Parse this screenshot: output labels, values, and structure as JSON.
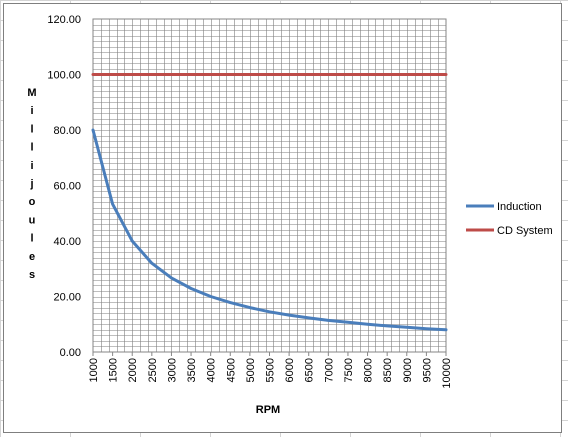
{
  "chart_data": {
    "type": "line",
    "title": "",
    "xlabel": "RPM",
    "ylabel": "Millijoules",
    "categories": [
      "1000",
      "1500",
      "2000",
      "2500",
      "3000",
      "3500",
      "4000",
      "4500",
      "5000",
      "5500",
      "6000",
      "6500",
      "7000",
      "7500",
      "8000",
      "8500",
      "9000",
      "9500",
      "10000"
    ],
    "ylim": [
      0,
      120
    ],
    "yticks": [
      "0.00",
      "20.00",
      "40.00",
      "60.00",
      "80.00",
      "100.00",
      "120.00"
    ],
    "grid": true,
    "legend_position": "right",
    "series": [
      {
        "name": "Induction",
        "color": "#4a7ebb",
        "values": [
          80.0,
          53.3,
          40.0,
          32.0,
          26.7,
          22.9,
          20.0,
          17.8,
          16.0,
          14.5,
          13.3,
          12.3,
          11.4,
          10.7,
          10.0,
          9.4,
          8.9,
          8.4,
          8.0
        ]
      },
      {
        "name": "CD System",
        "color": "#be4b48",
        "values": [
          100,
          100,
          100,
          100,
          100,
          100,
          100,
          100,
          100,
          100,
          100,
          100,
          100,
          100,
          100,
          100,
          100,
          100,
          100
        ]
      }
    ]
  }
}
